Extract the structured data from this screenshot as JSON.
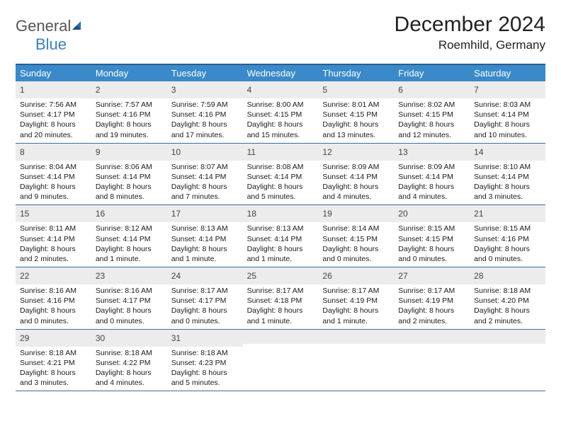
{
  "logo": {
    "text1": "General",
    "text2": "Blue"
  },
  "title": "December 2024",
  "location": "Roemhild, Germany",
  "colors": {
    "header_bar": "#3a8ac9",
    "top_border": "#2a5d93",
    "row_border": "#3a6fa0",
    "daynum_bg": "#ececec",
    "logo_gray": "#555555",
    "logo_blue": "#3a7fc4",
    "text": "#1a1a1a",
    "header_text": "#ffffff",
    "background": "#ffffff"
  },
  "typography": {
    "title_fontsize": 30,
    "location_fontsize": 17,
    "dayhead_fontsize": 13,
    "daynum_fontsize": 12,
    "detail_fontsize": 10.5
  },
  "day_headers": [
    "Sunday",
    "Monday",
    "Tuesday",
    "Wednesday",
    "Thursday",
    "Friday",
    "Saturday"
  ],
  "weeks": [
    [
      {
        "n": "1",
        "sunrise": "Sunrise: 7:56 AM",
        "sunset": "Sunset: 4:17 PM",
        "dl1": "Daylight: 8 hours",
        "dl2": "and 20 minutes."
      },
      {
        "n": "2",
        "sunrise": "Sunrise: 7:57 AM",
        "sunset": "Sunset: 4:16 PM",
        "dl1": "Daylight: 8 hours",
        "dl2": "and 19 minutes."
      },
      {
        "n": "3",
        "sunrise": "Sunrise: 7:59 AM",
        "sunset": "Sunset: 4:16 PM",
        "dl1": "Daylight: 8 hours",
        "dl2": "and 17 minutes."
      },
      {
        "n": "4",
        "sunrise": "Sunrise: 8:00 AM",
        "sunset": "Sunset: 4:15 PM",
        "dl1": "Daylight: 8 hours",
        "dl2": "and 15 minutes."
      },
      {
        "n": "5",
        "sunrise": "Sunrise: 8:01 AM",
        "sunset": "Sunset: 4:15 PM",
        "dl1": "Daylight: 8 hours",
        "dl2": "and 13 minutes."
      },
      {
        "n": "6",
        "sunrise": "Sunrise: 8:02 AM",
        "sunset": "Sunset: 4:15 PM",
        "dl1": "Daylight: 8 hours",
        "dl2": "and 12 minutes."
      },
      {
        "n": "7",
        "sunrise": "Sunrise: 8:03 AM",
        "sunset": "Sunset: 4:14 PM",
        "dl1": "Daylight: 8 hours",
        "dl2": "and 10 minutes."
      }
    ],
    [
      {
        "n": "8",
        "sunrise": "Sunrise: 8:04 AM",
        "sunset": "Sunset: 4:14 PM",
        "dl1": "Daylight: 8 hours",
        "dl2": "and 9 minutes."
      },
      {
        "n": "9",
        "sunrise": "Sunrise: 8:06 AM",
        "sunset": "Sunset: 4:14 PM",
        "dl1": "Daylight: 8 hours",
        "dl2": "and 8 minutes."
      },
      {
        "n": "10",
        "sunrise": "Sunrise: 8:07 AM",
        "sunset": "Sunset: 4:14 PM",
        "dl1": "Daylight: 8 hours",
        "dl2": "and 7 minutes."
      },
      {
        "n": "11",
        "sunrise": "Sunrise: 8:08 AM",
        "sunset": "Sunset: 4:14 PM",
        "dl1": "Daylight: 8 hours",
        "dl2": "and 5 minutes."
      },
      {
        "n": "12",
        "sunrise": "Sunrise: 8:09 AM",
        "sunset": "Sunset: 4:14 PM",
        "dl1": "Daylight: 8 hours",
        "dl2": "and 4 minutes."
      },
      {
        "n": "13",
        "sunrise": "Sunrise: 8:09 AM",
        "sunset": "Sunset: 4:14 PM",
        "dl1": "Daylight: 8 hours",
        "dl2": "and 4 minutes."
      },
      {
        "n": "14",
        "sunrise": "Sunrise: 8:10 AM",
        "sunset": "Sunset: 4:14 PM",
        "dl1": "Daylight: 8 hours",
        "dl2": "and 3 minutes."
      }
    ],
    [
      {
        "n": "15",
        "sunrise": "Sunrise: 8:11 AM",
        "sunset": "Sunset: 4:14 PM",
        "dl1": "Daylight: 8 hours",
        "dl2": "and 2 minutes."
      },
      {
        "n": "16",
        "sunrise": "Sunrise: 8:12 AM",
        "sunset": "Sunset: 4:14 PM",
        "dl1": "Daylight: 8 hours",
        "dl2": "and 1 minute."
      },
      {
        "n": "17",
        "sunrise": "Sunrise: 8:13 AM",
        "sunset": "Sunset: 4:14 PM",
        "dl1": "Daylight: 8 hours",
        "dl2": "and 1 minute."
      },
      {
        "n": "18",
        "sunrise": "Sunrise: 8:13 AM",
        "sunset": "Sunset: 4:14 PM",
        "dl1": "Daylight: 8 hours",
        "dl2": "and 1 minute."
      },
      {
        "n": "19",
        "sunrise": "Sunrise: 8:14 AM",
        "sunset": "Sunset: 4:15 PM",
        "dl1": "Daylight: 8 hours",
        "dl2": "and 0 minutes."
      },
      {
        "n": "20",
        "sunrise": "Sunrise: 8:15 AM",
        "sunset": "Sunset: 4:15 PM",
        "dl1": "Daylight: 8 hours",
        "dl2": "and 0 minutes."
      },
      {
        "n": "21",
        "sunrise": "Sunrise: 8:15 AM",
        "sunset": "Sunset: 4:16 PM",
        "dl1": "Daylight: 8 hours",
        "dl2": "and 0 minutes."
      }
    ],
    [
      {
        "n": "22",
        "sunrise": "Sunrise: 8:16 AM",
        "sunset": "Sunset: 4:16 PM",
        "dl1": "Daylight: 8 hours",
        "dl2": "and 0 minutes."
      },
      {
        "n": "23",
        "sunrise": "Sunrise: 8:16 AM",
        "sunset": "Sunset: 4:17 PM",
        "dl1": "Daylight: 8 hours",
        "dl2": "and 0 minutes."
      },
      {
        "n": "24",
        "sunrise": "Sunrise: 8:17 AM",
        "sunset": "Sunset: 4:17 PM",
        "dl1": "Daylight: 8 hours",
        "dl2": "and 0 minutes."
      },
      {
        "n": "25",
        "sunrise": "Sunrise: 8:17 AM",
        "sunset": "Sunset: 4:18 PM",
        "dl1": "Daylight: 8 hours",
        "dl2": "and 1 minute."
      },
      {
        "n": "26",
        "sunrise": "Sunrise: 8:17 AM",
        "sunset": "Sunset: 4:19 PM",
        "dl1": "Daylight: 8 hours",
        "dl2": "and 1 minute."
      },
      {
        "n": "27",
        "sunrise": "Sunrise: 8:17 AM",
        "sunset": "Sunset: 4:19 PM",
        "dl1": "Daylight: 8 hours",
        "dl2": "and 2 minutes."
      },
      {
        "n": "28",
        "sunrise": "Sunrise: 8:18 AM",
        "sunset": "Sunset: 4:20 PM",
        "dl1": "Daylight: 8 hours",
        "dl2": "and 2 minutes."
      }
    ],
    [
      {
        "n": "29",
        "sunrise": "Sunrise: 8:18 AM",
        "sunset": "Sunset: 4:21 PM",
        "dl1": "Daylight: 8 hours",
        "dl2": "and 3 minutes."
      },
      {
        "n": "30",
        "sunrise": "Sunrise: 8:18 AM",
        "sunset": "Sunset: 4:22 PM",
        "dl1": "Daylight: 8 hours",
        "dl2": "and 4 minutes."
      },
      {
        "n": "31",
        "sunrise": "Sunrise: 8:18 AM",
        "sunset": "Sunset: 4:23 PM",
        "dl1": "Daylight: 8 hours",
        "dl2": "and 5 minutes."
      },
      null,
      null,
      null,
      null
    ]
  ]
}
